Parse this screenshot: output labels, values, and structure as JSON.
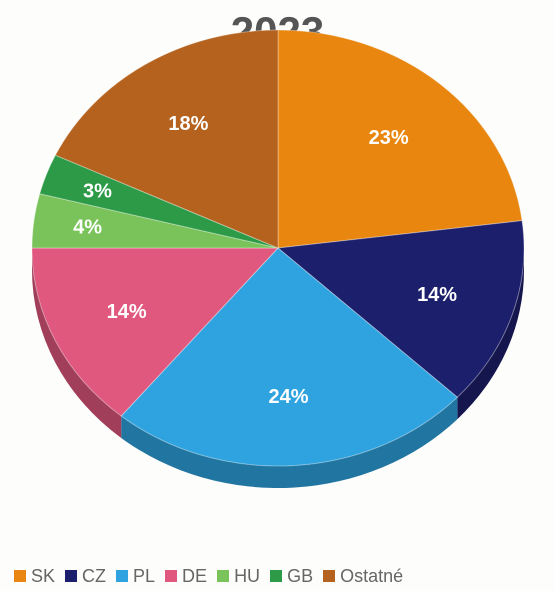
{
  "chart_data": {
    "type": "pie",
    "title": "2023",
    "categories": [
      "SK",
      "CZ",
      "PL",
      "DE",
      "HU",
      "GB",
      "Ostatné"
    ],
    "values": [
      23,
      14,
      24,
      14,
      4,
      3,
      18
    ],
    "value_labels": [
      "23%",
      "14%",
      "24%",
      "14%",
      "4%",
      "3%",
      "18%"
    ],
    "colors": [
      "#e8860f",
      "#1c1f6b",
      "#2ea3df",
      "#e0587e",
      "#7ac35b",
      "#2c9a47",
      "#b5621e"
    ],
    "legend_position": "bottom"
  }
}
